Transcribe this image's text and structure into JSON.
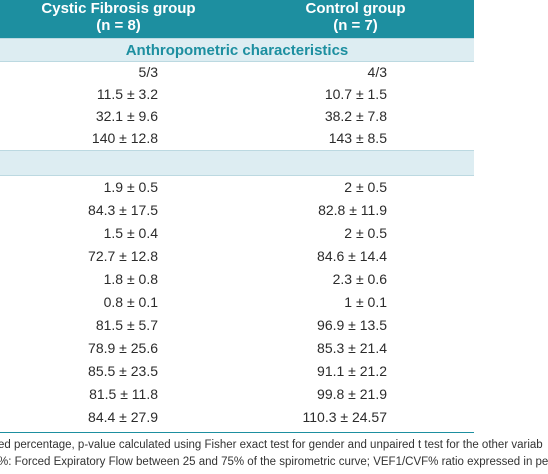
{
  "header": {
    "col1_line1": "Cystic Fibrosis group",
    "col1_line2": "(n = 8)",
    "col2_line1": "Control group",
    "col2_line2": "(n = 7)"
  },
  "section": {
    "title": "Anthropometric characteristics"
  },
  "group_a": [
    {
      "cf": "5/3",
      "ctrl": "4/3"
    },
    {
      "cf": "11.5 ± 3.2",
      "ctrl": "10.7 ± 1.5"
    },
    {
      "cf": "32.1 ± 9.6",
      "ctrl": "38.2 ± 7.8"
    },
    {
      "cf": "140 ± 12.8",
      "ctrl": "143 ± 8.5"
    }
  ],
  "group_b": [
    {
      "cf": "1.9 ± 0.5",
      "ctrl": "2 ± 0.5"
    },
    {
      "cf": "84.3 ± 17.5",
      "ctrl": "82.8 ± 11.9"
    },
    {
      "cf": "1.5 ± 0.4",
      "ctrl": "2 ± 0.5"
    },
    {
      "cf": "72.7 ± 12.8",
      "ctrl": "84.6 ± 14.4"
    },
    {
      "cf": "1.8 ± 0.8",
      "ctrl": "2.3 ± 0.6"
    },
    {
      "cf": "0.8 ± 0.1",
      "ctrl": "1 ± 0.1"
    },
    {
      "cf": "81.5 ± 5.7",
      "ctrl": "96.9 ± 13.5"
    },
    {
      "cf": "78.9 ± 25.6",
      "ctrl": "85.3 ± 21.4"
    },
    {
      "cf": "85.5 ± 23.5",
      "ctrl": "91.1 ± 21.2"
    },
    {
      "cf": "81.5 ± 11.8",
      "ctrl": "99.8 ± 21.9"
    },
    {
      "cf": "84.4 ± 27.9",
      "ctrl": "110.3 ± 24.57"
    }
  ],
  "footnote": {
    "line1": "ed percentage, p-value calculated using Fisher exact test for gender and unpaired t test for the other variab",
    "line2": "%: Forced Expiratory Flow between 25 and 75% of the spirometric curve; VEF1/CVF% ratio expressed in pe"
  }
}
